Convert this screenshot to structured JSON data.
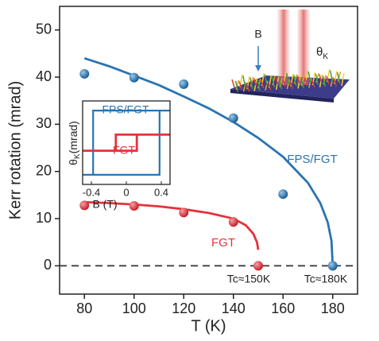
{
  "chart_data": [
    {
      "type": "scatter",
      "xlabel": "T (K)",
      "ylabel": "Kerr rotation (mrad)",
      "xlim": [
        70,
        190
      ],
      "ylim": [
        -6,
        55
      ],
      "xticks": [
        80,
        100,
        120,
        140,
        160,
        180
      ],
      "yticks": [
        0,
        10,
        20,
        30,
        40,
        50
      ],
      "reference_line": 0,
      "series": [
        {
          "name": "FPS/FGT",
          "color": "#2a74b0",
          "x": [
            80,
            100,
            120,
            140,
            160,
            180
          ],
          "values": [
            40.7,
            39.9,
            38.5,
            31.3,
            15.2,
            0
          ]
        },
        {
          "name": "FGT",
          "color": "#e3333b",
          "x": [
            80,
            100,
            120,
            140,
            150
          ],
          "values": [
            12.8,
            12.7,
            11.3,
            9.3,
            0
          ]
        }
      ],
      "fits": [
        {
          "color": "#2a74b0",
          "x": [
            80,
            90,
            100,
            110,
            120,
            130,
            140,
            150,
            160,
            170,
            175,
            178,
            179.5,
            180
          ],
          "values": [
            44,
            42.3,
            40.3,
            38.3,
            35.9,
            33.4,
            30.5,
            27.1,
            23.1,
            17.6,
            13.3,
            9.2,
            5.3,
            0
          ]
        },
        {
          "color": "#e3333b",
          "x": [
            80,
            90,
            100,
            110,
            120,
            130,
            140,
            145,
            148,
            149.5,
            150
          ],
          "values": [
            13.5,
            13.3,
            13,
            12.6,
            12,
            11.2,
            10,
            8.6,
            6.8,
            5,
            3.4
          ]
        }
      ],
      "annotations": [
        "Tc≈150K",
        "Tc≈180K"
      ],
      "schematic": {
        "field_label": "B",
        "angle_symbol": "θ",
        "angle_subscript": "K"
      }
    },
    {
      "type": "line",
      "xlabel": "B (T)",
      "ylabel": {
        "symbol": "θ",
        "subscript": "K",
        "unit": "(mrad)"
      },
      "xlim": [
        -0.5,
        0.5
      ],
      "ylim": [
        -1.3,
        1.3
      ],
      "xticks": [
        -0.4,
        0,
        0.4
      ],
      "series": [
        {
          "name": "FPS/FGT",
          "color": "#2a74b0",
          "x": [
            -0.5,
            0.38,
            0.38,
            0.5,
            0.38,
            -0.38,
            -0.38,
            -0.5
          ],
          "values": [
            -1,
            -1,
            1,
            1,
            1,
            1,
            -1,
            -1
          ]
        },
        {
          "name": "FGT",
          "color": "#e3333b",
          "x": [
            -0.5,
            0.12,
            0.12,
            0.5,
            0.12,
            -0.12,
            -0.12,
            -0.5
          ],
          "values": [
            -0.25,
            -0.25,
            0.25,
            0.25,
            0.25,
            0.25,
            -0.25,
            -0.25
          ]
        }
      ]
    }
  ]
}
